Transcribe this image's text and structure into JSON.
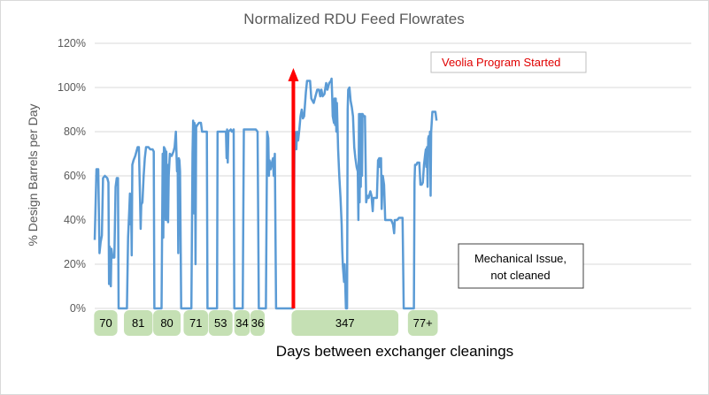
{
  "chart_data": {
    "type": "line",
    "title": "Normalized RDU Feed Flowrates",
    "ylabel": "% Design Barrels per Day",
    "xlabel": "Days between exchanger cleanings",
    "ylim": [
      0,
      120
    ],
    "yticks": [
      "0%",
      "20%",
      "40%",
      "60%",
      "80%",
      "100%",
      "120%"
    ],
    "grid": true,
    "x_range": [
      0,
      1000
    ],
    "series": [
      {
        "color": "#5b9bd5",
        "points": [
          [
            0,
            31
          ],
          [
            3,
            63
          ],
          [
            6,
            63
          ],
          [
            8,
            25
          ],
          [
            10,
            30
          ],
          [
            12,
            33
          ],
          [
            14,
            59
          ],
          [
            17,
            60
          ],
          [
            21,
            59
          ],
          [
            23,
            57
          ],
          [
            24,
            11
          ],
          [
            25,
            28
          ],
          [
            26,
            24
          ],
          [
            27,
            10
          ],
          [
            28,
            27
          ],
          [
            30,
            23
          ],
          [
            33,
            23
          ],
          [
            35,
            55
          ],
          [
            37,
            59
          ],
          [
            39,
            59
          ],
          [
            40,
            0
          ],
          [
            54,
            0
          ],
          [
            56,
            32
          ],
          [
            58,
            45
          ],
          [
            59,
            52
          ],
          [
            60,
            38
          ],
          [
            61,
            50
          ],
          [
            62,
            24
          ],
          [
            63,
            65
          ],
          [
            65,
            67
          ],
          [
            68,
            69
          ],
          [
            72,
            73
          ],
          [
            74,
            73
          ],
          [
            76,
            50
          ],
          [
            77,
            36
          ],
          [
            78,
            47
          ],
          [
            80,
            48
          ],
          [
            82,
            60
          ],
          [
            84,
            68
          ],
          [
            86,
            73
          ],
          [
            90,
            73
          ],
          [
            93,
            72
          ],
          [
            97,
            72
          ],
          [
            99,
            71
          ],
          [
            100,
            0
          ],
          [
            112,
            0
          ],
          [
            114,
            70
          ],
          [
            115,
            32
          ],
          [
            116,
            73
          ],
          [
            118,
            72
          ],
          [
            119,
            40
          ],
          [
            120,
            71
          ],
          [
            121,
            40
          ],
          [
            122,
            65
          ],
          [
            123,
            39
          ],
          [
            124,
            60
          ],
          [
            126,
            70
          ],
          [
            129,
            69
          ],
          [
            132,
            71
          ],
          [
            134,
            73
          ],
          [
            136,
            80
          ],
          [
            137,
            71
          ],
          [
            138,
            62
          ],
          [
            139,
            67
          ],
          [
            140,
            25
          ],
          [
            141,
            68
          ],
          [
            142,
            67
          ],
          [
            143,
            62
          ],
          [
            144,
            30
          ],
          [
            145,
            0
          ],
          [
            162,
            0
          ],
          [
            164,
            70
          ],
          [
            165,
            85
          ],
          [
            166,
            43
          ],
          [
            167,
            84
          ],
          [
            168,
            83
          ],
          [
            169,
            20
          ],
          [
            170,
            82
          ],
          [
            172,
            83
          ],
          [
            175,
            84
          ],
          [
            178,
            84
          ],
          [
            180,
            80
          ],
          [
            183,
            80
          ],
          [
            185,
            80
          ],
          [
            187,
            80
          ],
          [
            188,
            80
          ],
          [
            189,
            0
          ],
          [
            205,
            0
          ],
          [
            206,
            80
          ],
          [
            210,
            80
          ],
          [
            214,
            80
          ],
          [
            217,
            80
          ],
          [
            220,
            80
          ],
          [
            221,
            68
          ],
          [
            222,
            81
          ],
          [
            223,
            66
          ],
          [
            224,
            80
          ],
          [
            228,
            81
          ],
          [
            230,
            80
          ],
          [
            233,
            81
          ],
          [
            234,
            0
          ],
          [
            248,
            0
          ],
          [
            250,
            81
          ],
          [
            255,
            81
          ],
          [
            260,
            81
          ],
          [
            265,
            81
          ],
          [
            270,
            81
          ],
          [
            273,
            80
          ],
          [
            275,
            0
          ],
          [
            287,
            0
          ],
          [
            289,
            80
          ],
          [
            291,
            77
          ],
          [
            292,
            60
          ],
          [
            293,
            67
          ],
          [
            295,
            63
          ],
          [
            297,
            66
          ],
          [
            299,
            68
          ],
          [
            300,
            60
          ],
          [
            302,
            70
          ],
          [
            304,
            0
          ],
          [
            332,
            0
          ],
          [
            333,
            10
          ],
          [
            335,
            80
          ],
          [
            337,
            79
          ],
          [
            338,
            72
          ],
          [
            339,
            80
          ],
          [
            341,
            76
          ],
          [
            343,
            81
          ],
          [
            345,
            87
          ],
          [
            347,
            90
          ],
          [
            349,
            86
          ],
          [
            351,
            87
          ],
          [
            354,
            98
          ],
          [
            356,
            103
          ],
          [
            358,
            103
          ],
          [
            361,
            103
          ],
          [
            363,
            95
          ],
          [
            367,
            93
          ],
          [
            370,
            96
          ],
          [
            373,
            99
          ],
          [
            376,
            99
          ],
          [
            378,
            96
          ],
          [
            380,
            99
          ],
          [
            382,
            96
          ],
          [
            385,
            97
          ],
          [
            388,
            102
          ],
          [
            390,
            99
          ],
          [
            393,
            102
          ],
          [
            396,
            103
          ],
          [
            397,
            104
          ],
          [
            398,
            96
          ],
          [
            399,
            87
          ],
          [
            401,
            84
          ],
          [
            402,
            95
          ],
          [
            403,
            83
          ],
          [
            404,
            95
          ],
          [
            405,
            80
          ],
          [
            406,
            93
          ],
          [
            408,
            72
          ],
          [
            410,
            60
          ],
          [
            412,
            50
          ],
          [
            414,
            38
          ],
          [
            415,
            26
          ],
          [
            416,
            19
          ],
          [
            418,
            12
          ],
          [
            419,
            20
          ],
          [
            421,
            0
          ],
          [
            423,
            0
          ],
          [
            424,
            90
          ],
          [
            425,
            99
          ],
          [
            427,
            100
          ],
          [
            429,
            94
          ],
          [
            431,
            91
          ],
          [
            433,
            87
          ],
          [
            435,
            73
          ],
          [
            437,
            68
          ],
          [
            439,
            64
          ],
          [
            441,
            62
          ],
          [
            442,
            40
          ],
          [
            443,
            88
          ],
          [
            444,
            48
          ],
          [
            445,
            88
          ],
          [
            446,
            55
          ],
          [
            447,
            88
          ],
          [
            448,
            60
          ],
          [
            449,
            88
          ],
          [
            451,
            87
          ],
          [
            453,
            87
          ],
          [
            455,
            48
          ],
          [
            457,
            51
          ],
          [
            459,
            50
          ],
          [
            462,
            53
          ],
          [
            464,
            51
          ],
          [
            466,
            44
          ],
          [
            467,
            50
          ],
          [
            470,
            50
          ],
          [
            473,
            50
          ],
          [
            475,
            67
          ],
          [
            477,
            68
          ],
          [
            478,
            64
          ],
          [
            480,
            68
          ],
          [
            481,
            45
          ],
          [
            483,
            60
          ],
          [
            485,
            56
          ],
          [
            487,
            40
          ],
          [
            492,
            40
          ],
          [
            497,
            40
          ],
          [
            500,
            38
          ],
          [
            502,
            34
          ],
          [
            503,
            40
          ],
          [
            507,
            40
          ],
          [
            510,
            41
          ],
          [
            513,
            41
          ],
          [
            516,
            41
          ],
          [
            518,
            0
          ],
          [
            535,
            0
          ],
          [
            536,
            57
          ],
          [
            537,
            65
          ],
          [
            539,
            65
          ],
          [
            541,
            66
          ],
          [
            544,
            66
          ],
          [
            546,
            56
          ],
          [
            548,
            56
          ],
          [
            550,
            57
          ],
          [
            552,
            65
          ],
          [
            554,
            70
          ],
          [
            555,
            72
          ],
          [
            556,
            64
          ],
          [
            557,
            73
          ],
          [
            558,
            55
          ],
          [
            559,
            77
          ],
          [
            560,
            78
          ],
          [
            561,
            71
          ],
          [
            562,
            80
          ],
          [
            563,
            51
          ],
          [
            564,
            80
          ],
          [
            566,
            89
          ],
          [
            569,
            89
          ],
          [
            571,
            89
          ],
          [
            573,
            85
          ]
        ]
      }
    ],
    "annotations": [
      {
        "text": "Veolia Program Started",
        "x": 333,
        "color": "#e00000"
      },
      {
        "text": [
          "Mechanical Issue,",
          "not cleaned"
        ]
      }
    ],
    "segments": [
      {
        "label": "70",
        "start": -1,
        "end": 38
      },
      {
        "label": "81",
        "start": 49,
        "end": 97
      },
      {
        "label": "80",
        "start": 98,
        "end": 144
      },
      {
        "label": "71",
        "start": 149,
        "end": 190
      },
      {
        "label": "53",
        "start": 191,
        "end": 231
      },
      {
        "label": "34",
        "start": 234,
        "end": 260
      },
      {
        "label": "36",
        "start": 261,
        "end": 285
      },
      {
        "label": "347",
        "start": 330,
        "end": 509
      },
      {
        "label": "77+",
        "start": 525,
        "end": 575
      }
    ]
  }
}
